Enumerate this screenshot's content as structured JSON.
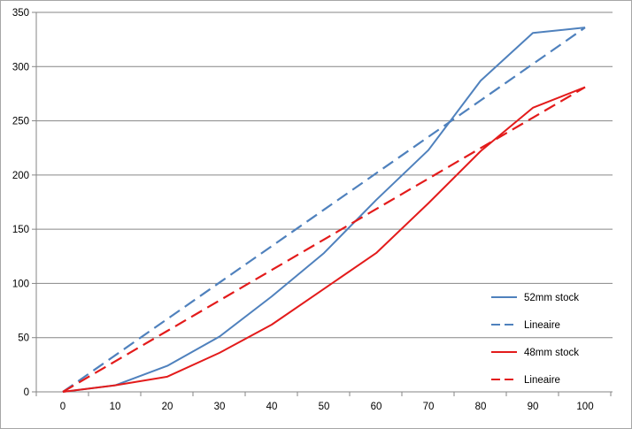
{
  "chart_data": {
    "type": "line",
    "x": [
      0,
      10,
      20,
      30,
      40,
      50,
      60,
      70,
      80,
      90,
      100
    ],
    "xlim": [
      0,
      100
    ],
    "ylim": [
      0,
      350
    ],
    "yticks": [
      0,
      50,
      100,
      150,
      200,
      250,
      300,
      350
    ],
    "grid": true,
    "legend_position": "bottom-right",
    "series": [
      {
        "name": "52mm stock",
        "color": "#4f81bd",
        "dashed": false,
        "values": [
          0,
          6,
          24,
          51,
          88,
          128,
          177,
          223,
          287,
          331,
          336
        ]
      },
      {
        "name": "Lineaire",
        "color": "#4f81bd",
        "dashed": true,
        "values": [
          0,
          33.6,
          67.2,
          100.8,
          134.4,
          168,
          201.6,
          235.2,
          268.8,
          302.4,
          336
        ]
      },
      {
        "name": "48mm stock",
        "color": "#e31b1b",
        "dashed": false,
        "values": [
          0,
          6,
          14,
          36,
          62,
          95,
          128,
          174,
          222,
          262,
          281
        ]
      },
      {
        "name": "Lineaire",
        "color": "#e31b1b",
        "dashed": true,
        "values": [
          0,
          28.1,
          56.2,
          84.3,
          112.4,
          140.5,
          168.6,
          196.7,
          224.8,
          252.9,
          281
        ]
      }
    ]
  }
}
